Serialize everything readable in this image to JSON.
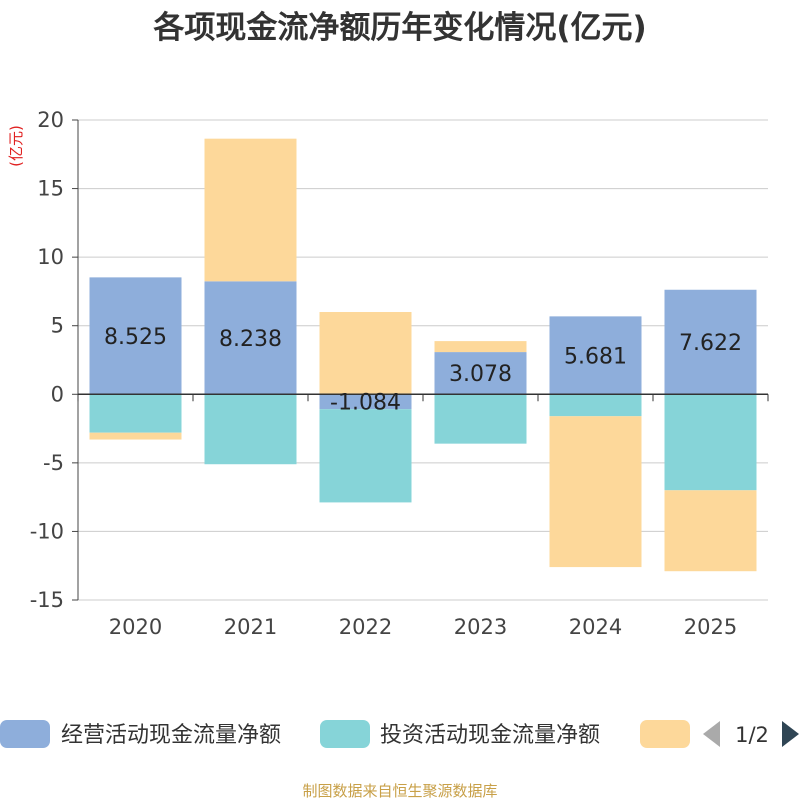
{
  "chart_data": {
    "type": "bar",
    "stacked": true,
    "title": "各项现金流净额历年变化情况(亿元)",
    "ylabel": "(亿元)",
    "xlabel": "",
    "ylim": [
      -15,
      20
    ],
    "yticks": [
      20,
      15,
      10,
      5,
      0,
      -5,
      -10,
      -15
    ],
    "ytick_labels": [
      "20",
      "15",
      "10",
      "5",
      "0",
      "-5",
      "-10",
      "-15"
    ],
    "categories": [
      "2020",
      "2021",
      "2022",
      "2023",
      "2024",
      "2025"
    ],
    "series": [
      {
        "name": "经营活动现金流量净额",
        "color": "#8eaedb",
        "values": [
          8.525,
          8.238,
          -1.084,
          3.078,
          5.681,
          7.622
        ],
        "labels": [
          "8.525",
          "8.238",
          "-1.084",
          "3.078",
          "5.681",
          "7.622"
        ]
      },
      {
        "name": "投资活动现金流量净额",
        "color": "#86d4d8",
        "values": [
          -2.8,
          -5.1,
          -6.8,
          -3.6,
          -1.6,
          -7.0
        ]
      },
      {
        "name": "",
        "color": "#fdd89a",
        "values": [
          -0.5,
          10.4,
          6.0,
          0.8,
          -11.0,
          -5.9
        ]
      }
    ],
    "grid": true,
    "legend_position": "bottom",
    "legend_page": "1/2"
  },
  "footer": {
    "source": "制图数据来自恒生聚源数据库"
  },
  "icons": {
    "prev": "triangle-left-icon",
    "next": "triangle-right-icon"
  },
  "colors": {
    "prev_arrow": "#aaaaaa",
    "next_arrow": "#2f4554"
  }
}
